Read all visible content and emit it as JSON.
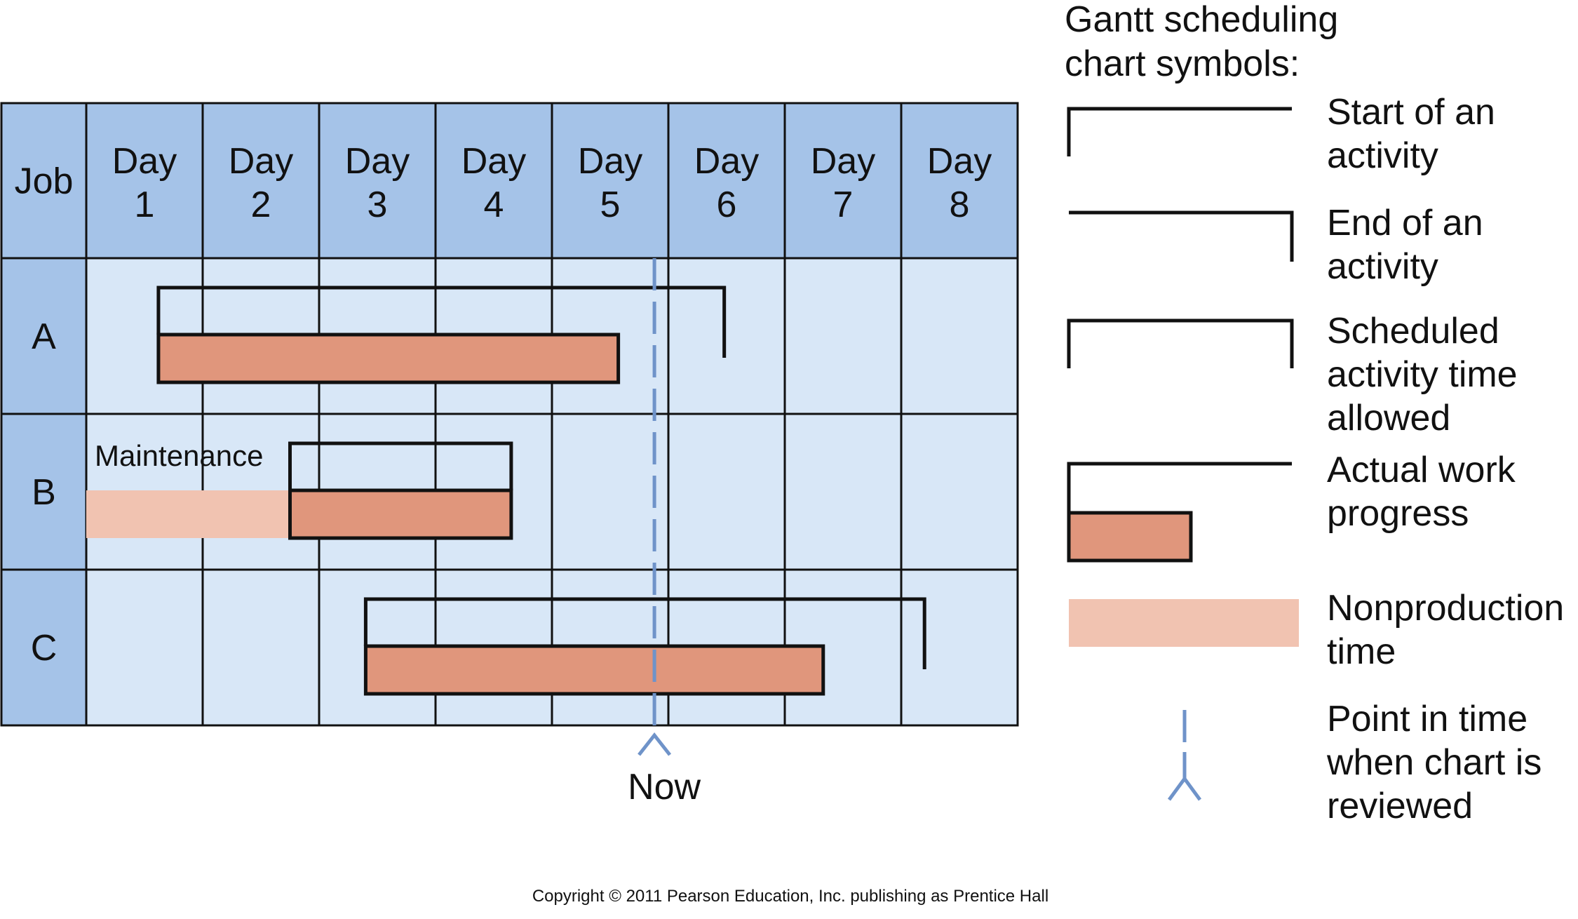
{
  "colors": {
    "header_fill": "#a5c3e8",
    "job_column_fill": "#a5c3e8",
    "cell_fill": "#d8e7f7",
    "grid_line": "#111111",
    "actual_progress": "#e0967c",
    "nonproduction": "#f1c3b1",
    "now_line": "#6f93c9"
  },
  "chart": {
    "job_header": "Job",
    "day_word": "Day",
    "days": [
      "1",
      "2",
      "3",
      "4",
      "5",
      "6",
      "7",
      "8"
    ],
    "jobs": [
      "A",
      "B",
      "C"
    ],
    "now_label": "Now"
  },
  "chart_data": {
    "type": "gantt",
    "unit": "days",
    "x_range": [
      0,
      8
    ],
    "now": 4.88,
    "tasks": [
      {
        "job": "A",
        "scheduled": [
          0.62,
          5.48
        ],
        "actual": [
          0.62,
          4.57
        ],
        "nonproduction": null,
        "note": ""
      },
      {
        "job": "B",
        "scheduled": [
          1.75,
          3.65
        ],
        "actual": [
          1.75,
          3.65
        ],
        "nonproduction": [
          0.0,
          1.75
        ],
        "note": "Maintenance"
      },
      {
        "job": "C",
        "scheduled": [
          2.4,
          7.2
        ],
        "actual": [
          2.4,
          6.33
        ],
        "nonproduction": null,
        "note": ""
      }
    ]
  },
  "legend": {
    "title_line1": "Gantt scheduling",
    "title_line2": "chart symbols:",
    "items": [
      {
        "symbol": "start",
        "lines": [
          "Start of an",
          "activity"
        ]
      },
      {
        "symbol": "end",
        "lines": [
          "End of an",
          "activity"
        ]
      },
      {
        "symbol": "scheduled",
        "lines": [
          "Scheduled",
          "activity time",
          "allowed"
        ]
      },
      {
        "symbol": "actual",
        "lines": [
          "Actual work",
          "progress"
        ]
      },
      {
        "symbol": "nonproduction",
        "lines": [
          "Nonproduction",
          "time"
        ]
      },
      {
        "symbol": "now",
        "lines": [
          "Point in time",
          "when chart is",
          "reviewed"
        ]
      }
    ]
  },
  "copyright": "Copyright © 2011 Pearson Education, Inc. publishing as Prentice Hall"
}
